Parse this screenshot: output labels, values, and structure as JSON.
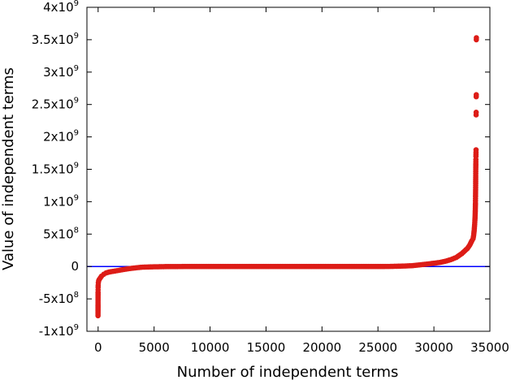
{
  "chart_data": {
    "type": "scatter",
    "xlabel": "Number of independent terms",
    "ylabel": "Value of independent terms",
    "xlim": [
      -1000,
      35000
    ],
    "ylim": [
      -1000000000,
      4000000000
    ],
    "grid": false,
    "x_ticks": [
      {
        "value": 0,
        "label": "0"
      },
      {
        "value": 5000,
        "label": "5000"
      },
      {
        "value": 10000,
        "label": "10000"
      },
      {
        "value": 15000,
        "label": "15000"
      },
      {
        "value": 20000,
        "label": "20000"
      },
      {
        "value": 25000,
        "label": "25000"
      },
      {
        "value": 30000,
        "label": "30000"
      },
      {
        "value": 35000,
        "label": "35000"
      }
    ],
    "y_ticks": [
      {
        "value": -1000000000,
        "mant": "-1x10",
        "exp": "9"
      },
      {
        "value": -500000000,
        "mant": "-5x10",
        "exp": "8"
      },
      {
        "value": 0,
        "mant": "0",
        "exp": ""
      },
      {
        "value": 500000000,
        "mant": "5x10",
        "exp": "8"
      },
      {
        "value": 1000000000,
        "mant": "1x10",
        "exp": "9"
      },
      {
        "value": 1500000000,
        "mant": "1.5x10",
        "exp": "9"
      },
      {
        "value": 2000000000,
        "mant": "2x10",
        "exp": "9"
      },
      {
        "value": 2500000000,
        "mant": "2.5x10",
        "exp": "9"
      },
      {
        "value": 3000000000,
        "mant": "3x10",
        "exp": "9"
      },
      {
        "value": 3500000000,
        "mant": "3.5x10",
        "exp": "9"
      },
      {
        "value": 4000000000,
        "mant": "4x10",
        "exp": "9"
      }
    ],
    "reference_line": {
      "y": 0,
      "color": "#0000ff"
    },
    "series": [
      {
        "color": "#dd1c17",
        "points": [
          [
            -10,
            -760000000
          ],
          [
            -10,
            -735000000
          ],
          [
            -5,
            -400000000
          ],
          [
            -2,
            -360000000
          ],
          [
            0,
            -320000000
          ],
          [
            5,
            -290000000
          ],
          [
            20,
            -250000000
          ],
          [
            50,
            -220000000
          ],
          [
            100,
            -200000000
          ],
          [
            200,
            -175000000
          ],
          [
            300,
            -150000000
          ],
          [
            500,
            -120000000
          ],
          [
            700,
            -100000000
          ],
          [
            1000,
            -85000000
          ],
          [
            1500,
            -70000000
          ],
          [
            2000,
            -55000000
          ],
          [
            2500,
            -40000000
          ],
          [
            3000,
            -28000000
          ],
          [
            3500,
            -18000000
          ],
          [
            4000,
            -10000000
          ],
          [
            5000,
            -5000000
          ],
          [
            6000,
            -2000000
          ],
          [
            8000,
            0
          ],
          [
            10000,
            0
          ],
          [
            12000,
            0
          ],
          [
            14000,
            0
          ],
          [
            16000,
            0
          ],
          [
            18000,
            0
          ],
          [
            20000,
            0
          ],
          [
            22000,
            0
          ],
          [
            24000,
            0
          ],
          [
            26000,
            1000000
          ],
          [
            27000,
            5000000
          ],
          [
            28000,
            12000000
          ],
          [
            28500,
            20000000
          ],
          [
            29000,
            30000000
          ],
          [
            29500,
            40000000
          ],
          [
            30000,
            50000000
          ],
          [
            30500,
            62000000
          ],
          [
            31000,
            80000000
          ],
          [
            31500,
            105000000
          ],
          [
            32000,
            140000000
          ],
          [
            32500,
            200000000
          ],
          [
            33000,
            280000000
          ],
          [
            33200,
            330000000
          ],
          [
            33400,
            400000000
          ],
          [
            33500,
            430000000
          ],
          [
            33550,
            480000000
          ],
          [
            33600,
            560000000
          ],
          [
            33640,
            650000000
          ],
          [
            33670,
            740000000
          ],
          [
            33690,
            820000000
          ],
          [
            33700,
            900000000
          ],
          [
            33710,
            980000000
          ],
          [
            33715,
            1050000000
          ],
          [
            33720,
            1120000000
          ],
          [
            33725,
            1180000000
          ],
          [
            33730,
            1250000000
          ],
          [
            33735,
            1400000000
          ],
          [
            33740,
            1500000000
          ],
          [
            33745,
            1580000000
          ],
          [
            33750,
            1650000000
          ],
          [
            33755,
            1700000000
          ],
          [
            33760,
            1760000000
          ],
          [
            33765,
            1800000000
          ],
          [
            33770,
            2340000000
          ],
          [
            33775,
            2380000000
          ],
          [
            33780,
            2620000000
          ],
          [
            33785,
            2650000000
          ],
          [
            33790,
            3500000000
          ],
          [
            33795,
            3530000000
          ]
        ]
      }
    ]
  }
}
